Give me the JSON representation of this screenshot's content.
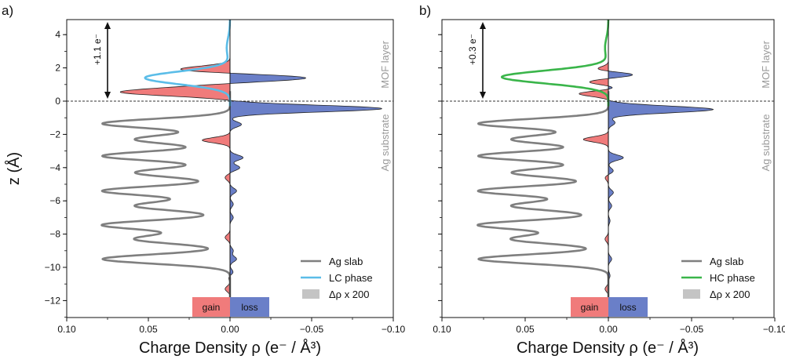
{
  "figure": {
    "panel_labels": [
      "a)",
      "b)"
    ],
    "ylabel": "z (Å)",
    "xlabel": "Charge Density ρ (e⁻ / Å³)"
  },
  "chart_data": [
    {
      "type": "area",
      "panel": "a)",
      "ylabel": "z (Å)",
      "xlabel": "Charge Density ρ (e⁻ / Å³)",
      "xlim": [
        0.1,
        -0.1
      ],
      "ylim": [
        -13,
        5
      ],
      "xticks": [
        "0.10",
        "0.05",
        "0.00",
        "−0.05",
        "−0.10"
      ],
      "yticks": [
        "−12",
        "−10",
        "−8",
        "−6",
        "−4",
        "−2",
        "0",
        "2",
        "4"
      ],
      "grid": false,
      "legend_position": "bottom-right",
      "legend": [
        "Ag slab",
        "LC phase",
        "Δρ x 200"
      ],
      "annotations": {
        "charge_transfer": "+1.1 e⁻",
        "region_upper": "MOF layer",
        "region_lower": "Ag substrate",
        "gain_label": "gain",
        "loss_label": "loss"
      },
      "series": [
        {
          "name": "Ag slab",
          "color": "#7f7f7f",
          "peaks_z": [
            -1.35,
            -3.3,
            -5.4,
            -7.45,
            -9.5,
            -2.3,
            -4.3,
            -6.3,
            -8.3
          ],
          "peaks_rho": [
            0.078,
            0.078,
            0.078,
            0.078,
            0.078,
            0.058,
            0.058,
            0.058,
            0.058
          ]
        },
        {
          "name": "LC phase",
          "color": "#5bbde8",
          "peaks_z": [
            1.4,
            3.2
          ],
          "peaks_rho": [
            0.052,
            0.002
          ]
        },
        {
          "name": "Δρ x 200",
          "gain_color": "#f07b7b",
          "loss_color": "#6a7fc8",
          "z": [
            1.9,
            1.4,
            0.8,
            0.5,
            -0.45,
            -1.4,
            -2.35,
            -3.4,
            -4.0,
            -4.6,
            -5.4,
            -6.2,
            -7.0,
            -8.2,
            -9.0,
            -9.5,
            -10.3,
            -10.6,
            -11.3
          ],
          "rho": [
            0.032,
            -0.048,
            0.024,
            0.058,
            -0.093,
            -0.007,
            0.017,
            -0.008,
            -0.006,
            0.003,
            -0.004,
            -0.002,
            -0.002,
            0.003,
            -0.002,
            -0.004,
            -0.002,
            0.001,
            0.003
          ]
        }
      ]
    },
    {
      "type": "area",
      "panel": "b)",
      "xlabel": "Charge Density ρ (e⁻ / Å³)",
      "xlim": [
        0.1,
        -0.1
      ],
      "ylim": [
        -13,
        5
      ],
      "xticks": [
        "0.10",
        "0.05",
        "0.00",
        "−0.05",
        "−0.10"
      ],
      "grid": false,
      "legend_position": "bottom-right",
      "legend": [
        "Ag slab",
        "HC phase",
        "Δρ x 200"
      ],
      "annotations": {
        "charge_transfer": "+0.3 e⁻",
        "region_upper": "MOF layer",
        "region_lower": "Ag substrate",
        "gain_label": "gain",
        "loss_label": "loss"
      },
      "series": [
        {
          "name": "Ag slab",
          "color": "#7f7f7f",
          "peaks_z": [
            -1.35,
            -3.3,
            -5.4,
            -7.45,
            -9.5,
            -2.3,
            -4.3,
            -6.3,
            -8.3
          ],
          "peaks_rho": [
            0.078,
            0.078,
            0.078,
            0.078,
            0.078,
            0.058,
            0.058,
            0.058,
            0.058
          ]
        },
        {
          "name": "HC phase",
          "color": "#3ab54a",
          "peaks_z": [
            1.45,
            3.2
          ],
          "peaks_rho": [
            0.064,
            0.002
          ]
        },
        {
          "name": "Δρ x 200",
          "gain_color": "#f07b7b",
          "loss_color": "#6a7fc8",
          "z": [
            1.9,
            1.6,
            1.15,
            0.8,
            0.45,
            -0.5,
            -1.3,
            -2.3,
            -3.4,
            -4.2,
            -4.6,
            -5.5,
            -6.3,
            -7.2,
            -8.3,
            -9.5,
            -10.5,
            -11.3
          ],
          "rho": [
            0.008,
            -0.016,
            0.012,
            -0.005,
            0.018,
            -0.063,
            -0.004,
            0.015,
            -0.009,
            -0.003,
            0.002,
            -0.003,
            -0.002,
            -0.001,
            0.002,
            -0.002,
            -0.001,
            0.002
          ]
        }
      ]
    }
  ]
}
